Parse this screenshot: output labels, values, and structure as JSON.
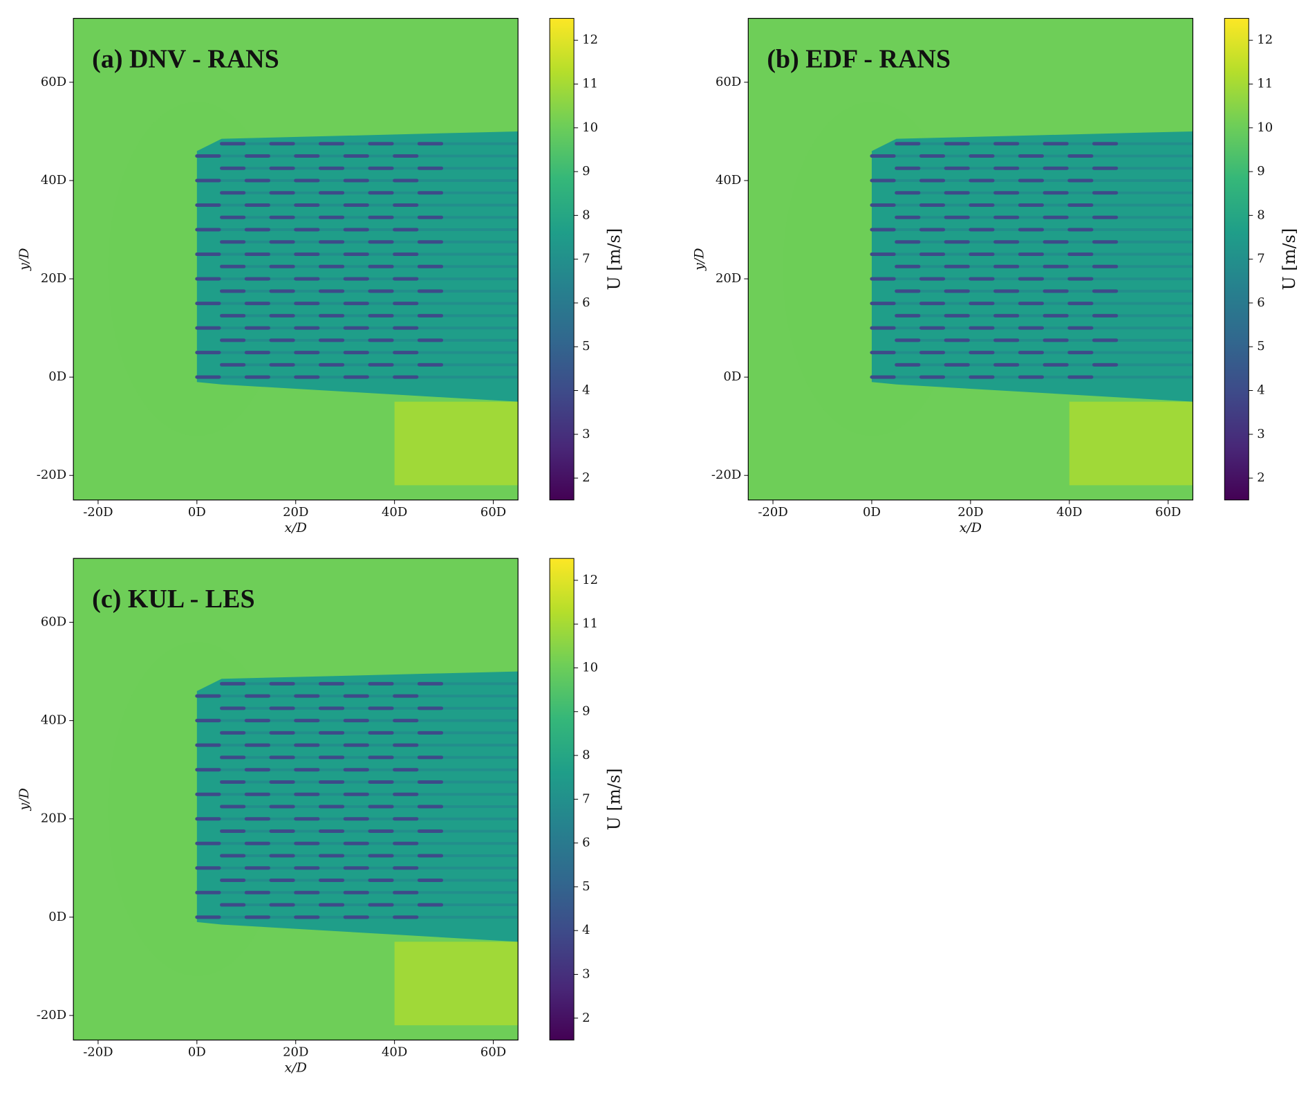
{
  "chart_data": [
    {
      "type": "heatmap",
      "title": "(a) DNV - RANS",
      "xlabel": "x/D",
      "ylabel": "y/D",
      "xlim": [
        -25,
        65
      ],
      "ylim": [
        -25,
        73
      ],
      "xticks": [
        {
          "value": -20,
          "label": "-20D"
        },
        {
          "value": 0,
          "label": "0D"
        },
        {
          "value": 20,
          "label": "20D"
        },
        {
          "value": 40,
          "label": "40D"
        },
        {
          "value": 60,
          "label": "60D"
        }
      ],
      "yticks": [
        {
          "value": -20,
          "label": "-20D"
        },
        {
          "value": 0,
          "label": "0D"
        },
        {
          "value": 20,
          "label": "20D"
        },
        {
          "value": 40,
          "label": "40D"
        },
        {
          "value": 60,
          "label": "60D"
        }
      ],
      "colorbar": {
        "label": "U [m/s]",
        "lim": [
          1.5,
          12.5
        ],
        "ticks": [
          2,
          3,
          4,
          5,
          6,
          7,
          8,
          9,
          10,
          11,
          12
        ],
        "colormap": "viridis"
      }
    },
    {
      "type": "heatmap",
      "title": "(b) EDF - RANS",
      "xlabel": "x/D",
      "ylabel": "y/D",
      "xlim": [
        -25,
        65
      ],
      "ylim": [
        -25,
        73
      ],
      "xticks": [
        {
          "value": -20,
          "label": "-20D"
        },
        {
          "value": 0,
          "label": "0D"
        },
        {
          "value": 20,
          "label": "20D"
        },
        {
          "value": 40,
          "label": "40D"
        },
        {
          "value": 60,
          "label": "60D"
        }
      ],
      "yticks": [
        {
          "value": -20,
          "label": "-20D"
        },
        {
          "value": 0,
          "label": "0D"
        },
        {
          "value": 20,
          "label": "20D"
        },
        {
          "value": 40,
          "label": "40D"
        },
        {
          "value": 60,
          "label": "60D"
        }
      ],
      "colorbar": {
        "label": "U [m/s]",
        "lim": [
          1.5,
          12.5
        ],
        "ticks": [
          2,
          3,
          4,
          5,
          6,
          7,
          8,
          9,
          10,
          11,
          12
        ],
        "colormap": "viridis"
      }
    },
    {
      "type": "heatmap",
      "title": "(c) KUL - LES",
      "xlabel": "x/D",
      "ylabel": "y/D",
      "xlim": [
        -25,
        65
      ],
      "ylim": [
        -25,
        73
      ],
      "xticks": [
        {
          "value": -20,
          "label": "-20D"
        },
        {
          "value": 0,
          "label": "0D"
        },
        {
          "value": 20,
          "label": "20D"
        },
        {
          "value": 40,
          "label": "40D"
        },
        {
          "value": 60,
          "label": "60D"
        }
      ],
      "yticks": [
        {
          "value": -20,
          "label": "-20D"
        },
        {
          "value": 0,
          "label": "0D"
        },
        {
          "value": 20,
          "label": "20D"
        },
        {
          "value": 40,
          "label": "40D"
        },
        {
          "value": 60,
          "label": "60D"
        }
      ],
      "colorbar": {
        "label": "U [m/s]",
        "lim": [
          1.5,
          12.5
        ],
        "ticks": [
          2,
          3,
          4,
          5,
          6,
          7,
          8,
          9,
          10,
          11,
          12
        ],
        "colormap": "viridis"
      }
    }
  ]
}
